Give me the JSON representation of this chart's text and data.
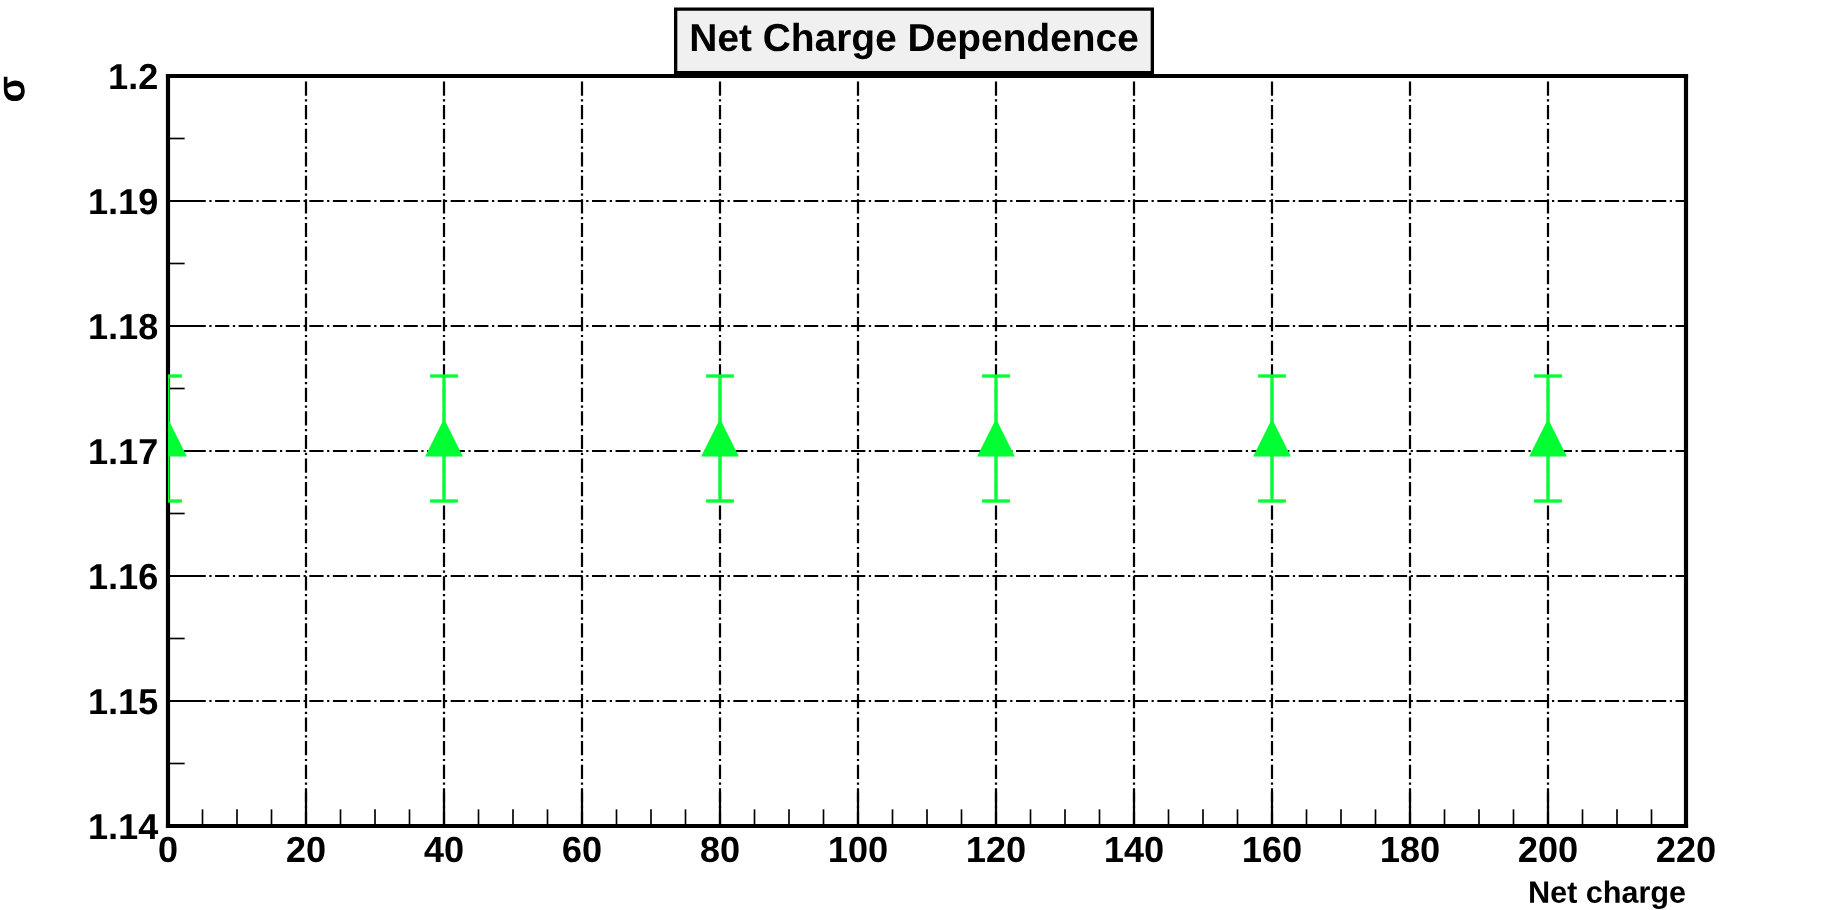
{
  "chart_data": {
    "type": "scatter",
    "title": "Net Charge Dependence",
    "xlabel": "Net charge",
    "ylabel": "σ",
    "x": [
      0,
      40,
      80,
      120,
      160,
      200
    ],
    "series": [
      {
        "color": "#00ff33",
        "values": [
          1.171,
          1.171,
          1.171,
          1.171,
          1.171,
          1.171
        ],
        "errors": [
          0.005,
          0.005,
          0.005,
          0.005,
          0.005,
          0.005
        ]
      }
    ],
    "marker": "triangle",
    "grid": true,
    "xlim": [
      0,
      220
    ],
    "xticks": [
      0,
      20,
      40,
      60,
      80,
      100,
      120,
      140,
      160,
      180,
      200,
      220
    ],
    "ylim": [
      1.14,
      1.2
    ],
    "yticks": [
      1.14,
      1.15,
      1.16,
      1.17,
      1.18,
      1.19,
      1.2
    ]
  }
}
